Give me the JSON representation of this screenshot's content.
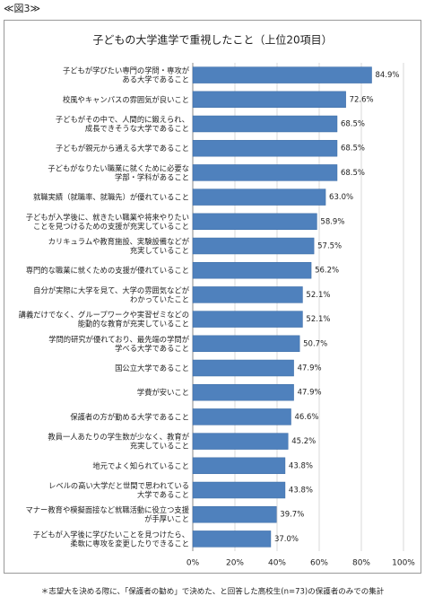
{
  "header": "≪図3≫",
  "footnote": "＊志望大を決める際に、「保護者の勧め」で決めた、と回答した高校生(n=73)の保護者のみでの集計",
  "chart_data": {
    "type": "bar",
    "orientation": "horizontal",
    "title": "子どもの大学進学で重視したこと（上位20項目）",
    "categories": [
      "子どもが学びたい専門の学問・専攻が\nある大学であること",
      "校風やキャンパスの雰囲気が良いこと",
      "子どもがその中で、人間的に鍛えられ、\n成長できそうな大学であること",
      "子どもが親元から通える大学であること",
      "子どもがなりたい職業に就くために必要な\n学部・学科があること",
      "就職実績（就職率、就職先）が優れていること",
      "子どもが入学後に、就きたい職業や将来やりたい\nことを見つけるための支援が充実していること",
      "カリキュラムや教育施設、実験設備などが\n充実していること",
      "専門的な職業に就くための支援が優れていること",
      "自分が実際に大学を見て、大学の雰囲気などが\nわかっていたこと",
      "講義だけでなく、グループワークや実習ゼミなどの\n能動的な教育が充実していること",
      "学問的研究が優れており、最先端の学問が\n学べる大学であること",
      "国公立大学であること",
      "学費が安いこと",
      "保護者の方が勤める大学であること",
      "教員一人あたりの学生数が少なく、教育が\n充実していること",
      "地元でよく知られていること",
      "レベルの高い大学だと世間で思われている\n大学であること",
      "マナー教育や模擬面接など就職活動に役立つ支援\nが手厚いこと",
      "子どもが入学後に学びたいことを見つけたら、\n柔軟に専攻を変更したりできること"
    ],
    "values": [
      84.9,
      72.6,
      68.5,
      68.5,
      68.5,
      63.0,
      58.9,
      57.5,
      56.2,
      52.1,
      52.1,
      50.7,
      47.9,
      47.9,
      46.6,
      45.2,
      43.8,
      43.8,
      39.7,
      37.0
    ],
    "value_labels": [
      "84.9%",
      "72.6%",
      "68.5%",
      "68.5%",
      "68.5%",
      "63.0%",
      "58.9%",
      "57.5%",
      "56.2%",
      "52.1%",
      "52.1%",
      "50.7%",
      "47.9%",
      "47.9%",
      "46.6%",
      "45.2%",
      "43.8%",
      "43.8%",
      "39.7%",
      "37.0%"
    ],
    "color": "#4f81bd",
    "xlim": [
      0,
      100
    ],
    "xticks": [
      {
        "value": 0,
        "label": "0%"
      },
      {
        "value": 20,
        "label": "20%"
      },
      {
        "value": 40,
        "label": "40%"
      },
      {
        "value": 60,
        "label": "60%"
      },
      {
        "value": 80,
        "label": "80%"
      },
      {
        "value": 100,
        "label": "100%"
      }
    ],
    "grid": true
  }
}
